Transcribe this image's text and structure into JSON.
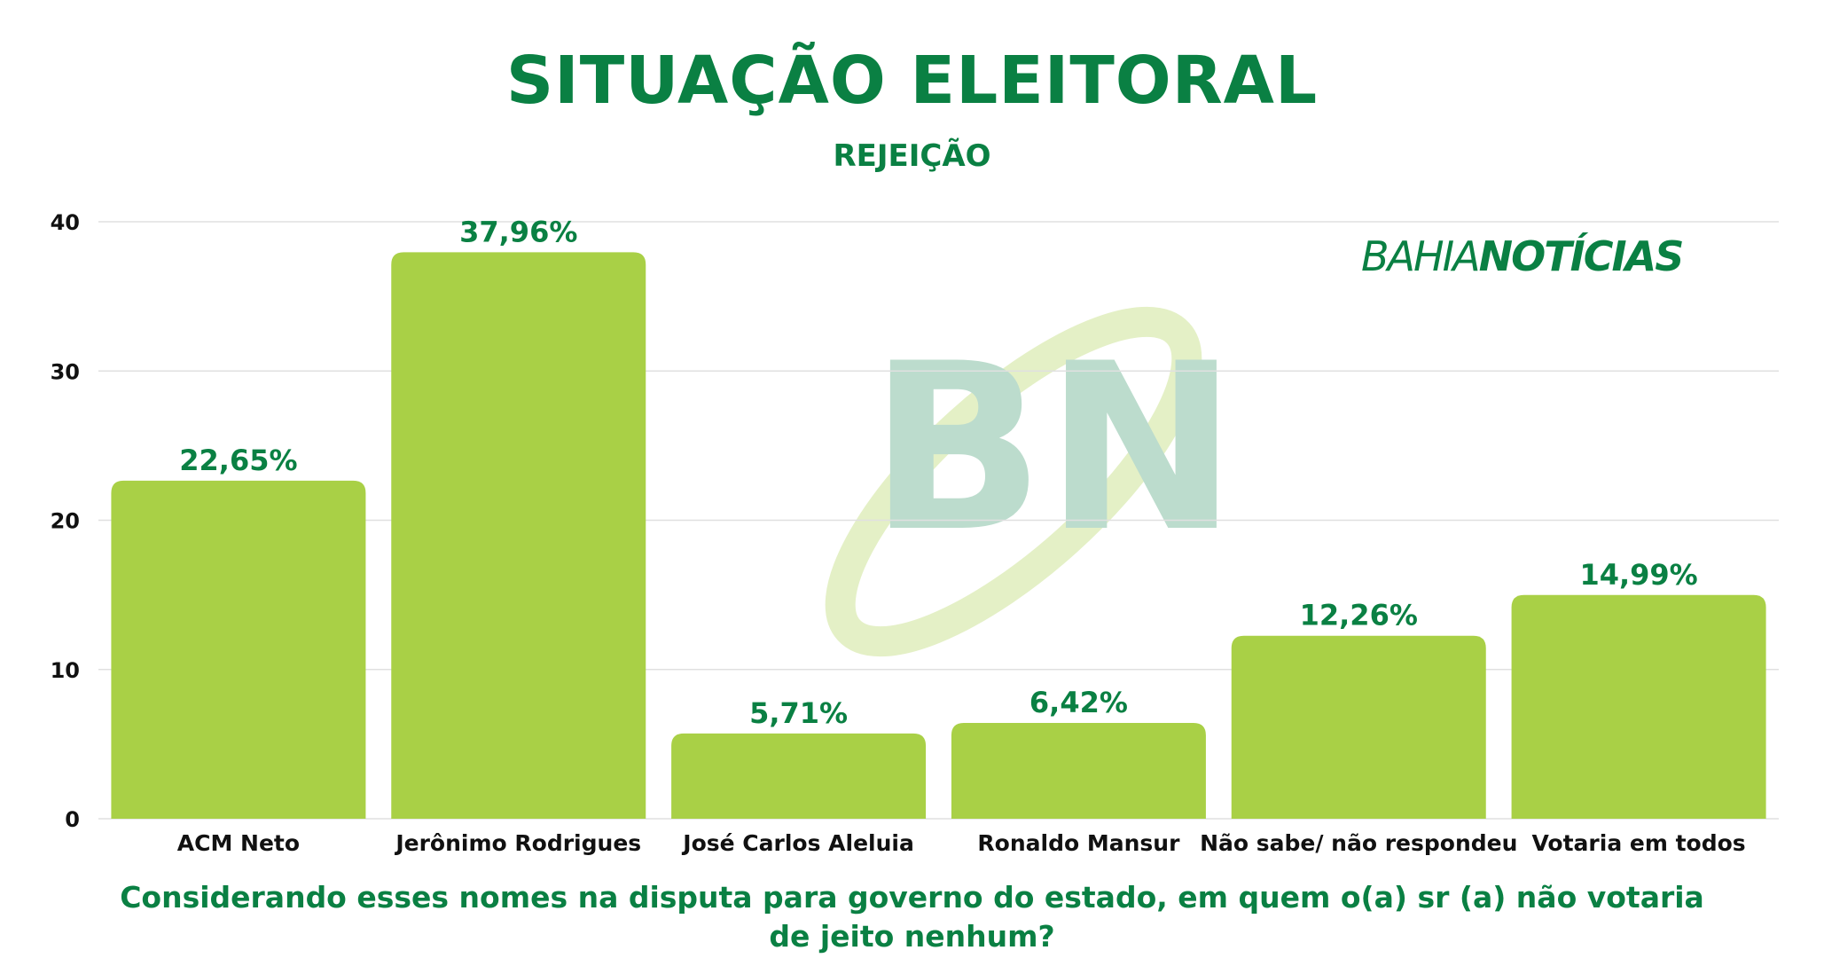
{
  "header": {
    "title": "SITUAÇÃO ELEITORAL",
    "subtitle": "REJEIÇÃO",
    "logo": {
      "part1": "BAHIA",
      "part2": "NOTÍCIAS",
      "watermark": "BN"
    }
  },
  "question": "Considerando esses nomes na disputa para governo do estado, em quem o(a) sr (a) não votaria de jeito nenhum?",
  "colors": {
    "bar": "#a9d046",
    "text": "#0a8043",
    "grid": "#e0e0e0"
  },
  "chart_data": {
    "type": "bar",
    "title": "SITUAÇÃO ELEITORAL",
    "subtitle": "REJEIÇÃO",
    "categories": [
      "ACM Neto",
      "Jerônimo Rodrigues",
      "José Carlos Aleluia",
      "Ronaldo Mansur",
      "Não sabe/ não respondeu",
      "Votaria em todos"
    ],
    "values": [
      22.65,
      37.96,
      5.71,
      6.42,
      12.26,
      14.99
    ],
    "data_labels": [
      "22,65%",
      "37,96%",
      "5,71%",
      "6,42%",
      "12,26%",
      "14,99%"
    ],
    "ylim": [
      0,
      40
    ],
    "yticks": [
      0,
      10,
      20,
      30,
      40
    ],
    "grid": true,
    "xlabel": "",
    "ylabel": ""
  }
}
